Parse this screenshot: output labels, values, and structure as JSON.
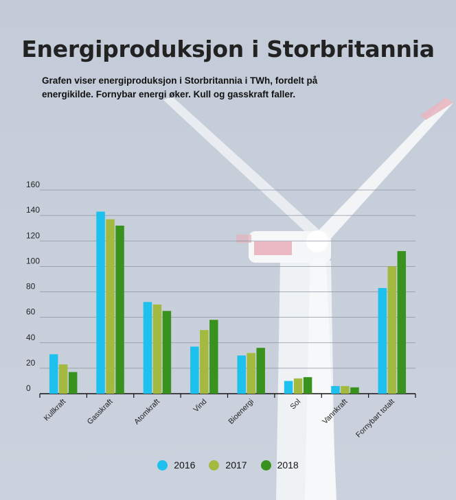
{
  "colors": {
    "2016": "#1ec0ee",
    "2017": "#a3b940",
    "2018": "#3a921e"
  },
  "chart_data": {
    "type": "bar",
    "title": "Energiproduksjon i Storbritannia",
    "subtitle": "Grafen viser energiproduksjon i Storbritannia i TWh, fordelt på energikilde. Fornybar energi øker. Kull og gasskraft faller.",
    "categories": [
      "Kullkraft",
      "Gasskraft",
      "Atomkraft",
      "Vind",
      "Bioenergi",
      "Sol",
      "Vannkraft",
      "Fornybart totalt"
    ],
    "series": [
      {
        "name": "2016",
        "values": [
          31,
          143,
          72,
          37,
          30,
          10,
          6,
          83
        ]
      },
      {
        "name": "2017",
        "values": [
          23,
          137,
          70,
          50,
          32,
          12,
          6,
          100
        ]
      },
      {
        "name": "2018",
        "values": [
          17,
          132,
          65,
          58,
          36,
          13,
          5,
          112
        ]
      }
    ],
    "ylim": [
      0,
      160
    ],
    "yticks": [
      0,
      20,
      40,
      60,
      80,
      100,
      120,
      140,
      160
    ],
    "grid": true,
    "legend": "bottom"
  }
}
